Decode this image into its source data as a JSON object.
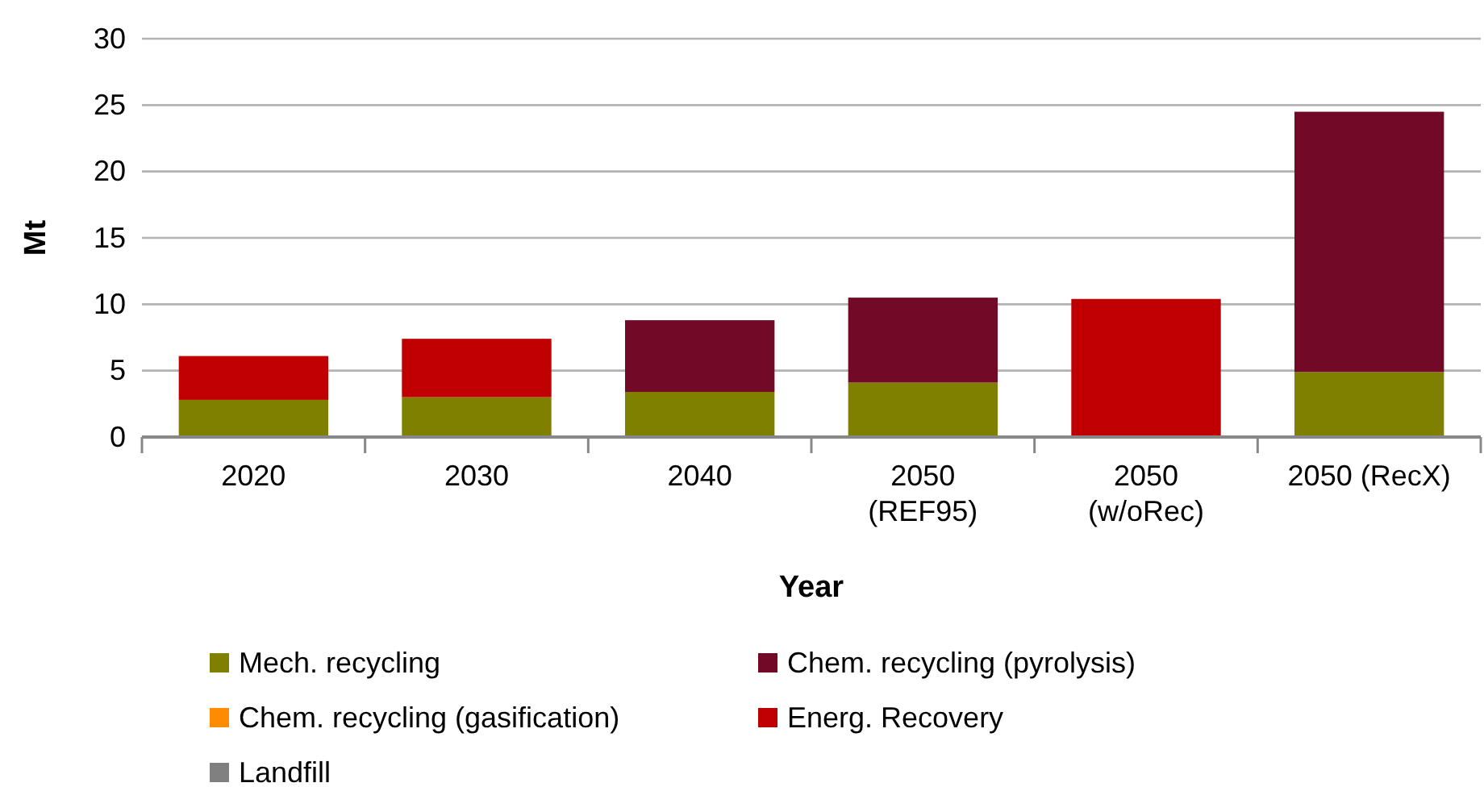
{
  "chart_data": {
    "type": "bar",
    "stacked": true,
    "xlabel": "Year",
    "ylabel": "Mt",
    "categories": [
      "2020",
      "2030",
      "2040",
      "2050\n(REF95)",
      "2050\n(w/oRec)",
      "2050 (RecX)"
    ],
    "series": [
      {
        "name": "Mech. recycling",
        "color": "#808000",
        "values": [
          2.8,
          3.0,
          3.4,
          4.1,
          0,
          4.9
        ]
      },
      {
        "name": "Chem. recycling (pyrolysis)",
        "color": "#720926",
        "values": [
          0,
          0,
          5.4,
          6.4,
          0,
          19.6
        ]
      },
      {
        "name": "Chem. recycling (gasification)",
        "color": "#ff8c00",
        "values": [
          0,
          0,
          0,
          0,
          0,
          0
        ]
      },
      {
        "name": "Energ. Recovery",
        "color": "#c00000",
        "values": [
          3.3,
          4.4,
          0,
          0,
          10.4,
          0
        ]
      },
      {
        "name": "Landfill",
        "color": "#808080",
        "values": [
          0,
          0,
          0,
          0,
          0,
          0
        ]
      }
    ],
    "ylim": [
      0,
      30
    ],
    "yticks": [
      0,
      5,
      10,
      15,
      20,
      25,
      30
    ],
    "grid": "y",
    "legend": "bottom"
  }
}
